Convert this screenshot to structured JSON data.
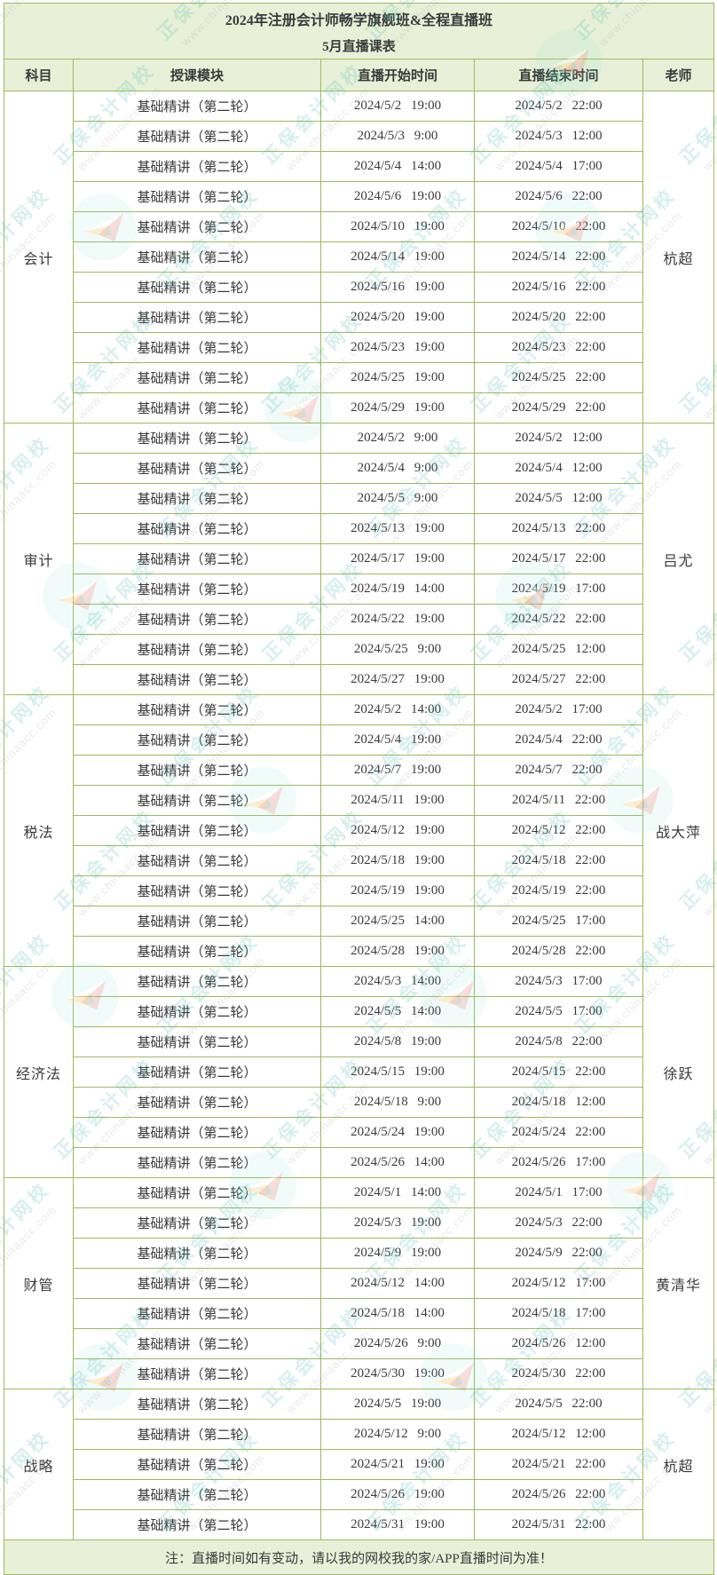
{
  "page": {
    "title": "2024年注册会计师畅学旗舰班&全程直播班",
    "subtitle": "5月直播课表",
    "note": "注：直播时间如有变动，请以我的网校我的家/APP直播时间为准！"
  },
  "table": {
    "columns": [
      "科目",
      "授课模块",
      "直播开始时间",
      "直播结束时间",
      "老师"
    ],
    "sections": [
      {
        "subject": "会计",
        "teacher": "杭超",
        "rows": [
          {
            "module": "基础精讲（第二轮）",
            "start": "2024/5/2 19:00",
            "end": "2024/5/2 22:00"
          },
          {
            "module": "基础精讲（第二轮）",
            "start": "2024/5/3 9:00",
            "end": "2024/5/3 12:00"
          },
          {
            "module": "基础精讲（第二轮）",
            "start": "2024/5/4 14:00",
            "end": "2024/5/4 17:00"
          },
          {
            "module": "基础精讲（第二轮）",
            "start": "2024/5/6 19:00",
            "end": "2024/5/6 22:00"
          },
          {
            "module": "基础精讲（第二轮）",
            "start": "2024/5/10 19:00",
            "end": "2024/5/10 22:00"
          },
          {
            "module": "基础精讲（第二轮）",
            "start": "2024/5/14 19:00",
            "end": "2024/5/14 22:00"
          },
          {
            "module": "基础精讲（第二轮）",
            "start": "2024/5/16 19:00",
            "end": "2024/5/16 22:00"
          },
          {
            "module": "基础精讲（第二轮）",
            "start": "2024/5/20 19:00",
            "end": "2024/5/20 22:00"
          },
          {
            "module": "基础精讲（第二轮）",
            "start": "2024/5/23 19:00",
            "end": "2024/5/23 22:00"
          },
          {
            "module": "基础精讲（第二轮）",
            "start": "2024/5/25 19:00",
            "end": "2024/5/25 22:00"
          },
          {
            "module": "基础精讲（第二轮）",
            "start": "2024/5/29 19:00",
            "end": "2024/5/29 22:00"
          }
        ]
      },
      {
        "subject": "审计",
        "teacher": "吕尤",
        "rows": [
          {
            "module": "基础精讲（第二轮）",
            "start": "2024/5/2 9:00",
            "end": "2024/5/2 12:00"
          },
          {
            "module": "基础精讲（第二轮）",
            "start": "2024/5/4 9:00",
            "end": "2024/5/4 12:00"
          },
          {
            "module": "基础精讲（第二轮）",
            "start": "2024/5/5 9:00",
            "end": "2024/5/5 12:00"
          },
          {
            "module": "基础精讲（第二轮）",
            "start": "2024/5/13 19:00",
            "end": "2024/5/13 22:00"
          },
          {
            "module": "基础精讲（第二轮）",
            "start": "2024/5/17 19:00",
            "end": "2024/5/17 22:00"
          },
          {
            "module": "基础精讲（第二轮）",
            "start": "2024/5/19 14:00",
            "end": "2024/5/19 17:00"
          },
          {
            "module": "基础精讲（第二轮）",
            "start": "2024/5/22 19:00",
            "end": "2024/5/22 22:00"
          },
          {
            "module": "基础精讲（第二轮）",
            "start": "2024/5/25 9:00",
            "end": "2024/5/25 12:00"
          },
          {
            "module": "基础精讲（第二轮）",
            "start": "2024/5/27 19:00",
            "end": "2024/5/27 22:00"
          }
        ]
      },
      {
        "subject": "税法",
        "teacher": "战大萍",
        "rows": [
          {
            "module": "基础精讲（第二轮）",
            "start": "2024/5/2 14:00",
            "end": "2024/5/2 17:00"
          },
          {
            "module": "基础精讲（第二轮）",
            "start": "2024/5/4 19:00",
            "end": "2024/5/4 22:00"
          },
          {
            "module": "基础精讲（第二轮）",
            "start": "2024/5/7 19:00",
            "end": "2024/5/7 22:00"
          },
          {
            "module": "基础精讲（第二轮）",
            "start": "2024/5/11 19:00",
            "end": "2024/5/11 22:00"
          },
          {
            "module": "基础精讲（第二轮）",
            "start": "2024/5/12 19:00",
            "end": "2024/5/12 22:00"
          },
          {
            "module": "基础精讲（第二轮）",
            "start": "2024/5/18 19:00",
            "end": "2024/5/18 22:00"
          },
          {
            "module": "基础精讲（第二轮）",
            "start": "2024/5/19 19:00",
            "end": "2024/5/19 22:00"
          },
          {
            "module": "基础精讲（第二轮）",
            "start": "2024/5/25 14:00",
            "end": "2024/5/25 17:00"
          },
          {
            "module": "基础精讲（第二轮）",
            "start": "2024/5/28 19:00",
            "end": "2024/5/28 22:00"
          }
        ]
      },
      {
        "subject": "经济法",
        "teacher": "徐跃",
        "rows": [
          {
            "module": "基础精讲（第二轮）",
            "start": "2024/5/3 14:00",
            "end": "2024/5/3 17:00"
          },
          {
            "module": "基础精讲（第二轮）",
            "start": "2024/5/5 14:00",
            "end": "2024/5/5 17:00"
          },
          {
            "module": "基础精讲（第二轮）",
            "start": "2024/5/8 19:00",
            "end": "2024/5/8 22:00"
          },
          {
            "module": "基础精讲（第二轮）",
            "start": "2024/5/15 19:00",
            "end": "2024/5/15 22:00"
          },
          {
            "module": "基础精讲（第二轮）",
            "start": "2024/5/18 9:00",
            "end": "2024/5/18 12:00"
          },
          {
            "module": "基础精讲（第二轮）",
            "start": "2024/5/24 19:00",
            "end": "2024/5/24 22:00"
          },
          {
            "module": "基础精讲（第二轮）",
            "start": "2024/5/26 14:00",
            "end": "2024/5/26 17:00"
          }
        ]
      },
      {
        "subject": "财管",
        "teacher": "黄清华",
        "rows": [
          {
            "module": "基础精讲（第二轮）",
            "start": "2024/5/1 14:00",
            "end": "2024/5/1 17:00"
          },
          {
            "module": "基础精讲（第二轮）",
            "start": "2024/5/3 19:00",
            "end": "2024/5/3 22:00"
          },
          {
            "module": "基础精讲（第二轮）",
            "start": "2024/5/9 19:00",
            "end": "2024/5/9 22:00"
          },
          {
            "module": "基础精讲（第二轮）",
            "start": "2024/5/12 14:00",
            "end": "2024/5/12 17:00"
          },
          {
            "module": "基础精讲（第二轮）",
            "start": "2024/5/18 14:00",
            "end": "2024/5/18 17:00"
          },
          {
            "module": "基础精讲（第二轮）",
            "start": "2024/5/26 9:00",
            "end": "2024/5/26 12:00"
          },
          {
            "module": "基础精讲（第二轮）",
            "start": "2024/5/30 19:00",
            "end": "2024/5/30 22:00"
          }
        ]
      },
      {
        "subject": "战略",
        "teacher": "杭超",
        "rows": [
          {
            "module": "基础精讲（第二轮）",
            "start": "2024/5/5 19:00",
            "end": "2024/5/5 22:00"
          },
          {
            "module": "基础精讲（第二轮）",
            "start": "2024/5/12 9:00",
            "end": "2024/5/12 12:00"
          },
          {
            "module": "基础精讲（第二轮）",
            "start": "2024/5/21 19:00",
            "end": "2024/5/21 22:00"
          },
          {
            "module": "基础精讲（第二轮）",
            "start": "2024/5/26 19:00",
            "end": "2024/5/26 22:00"
          },
          {
            "module": "基础精讲（第二轮）",
            "start": "2024/5/31 19:00",
            "end": "2024/5/31 22:00"
          }
        ]
      }
    ]
  },
  "watermark": {
    "brand_text": "正保会计网校",
    "url_text": "www.chinaacc.com",
    "logo": "paper-plane-logo"
  },
  "colors": {
    "band_bg": "#e8f1d8",
    "border": "#9fb95f",
    "text": "#3a3a3a",
    "watermark_teal": "#46b9af",
    "watermark_gray": "#969696"
  }
}
